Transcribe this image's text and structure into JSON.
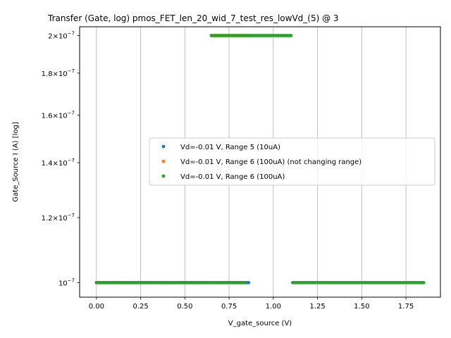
{
  "chart_data": {
    "type": "scatter",
    "title": "Transfer (Gate, log) pmos_FET_len_20_wid_7_test_res_lowVd_(5) @ 3",
    "xlabel": "V_gate_source (V)",
    "ylabel": "Gate_Source I (A) [log]",
    "xlim": [
      -0.095,
      1.945
    ],
    "ylim": [
      9.6e-08,
      2.05e-07
    ],
    "yscale": "log",
    "grid": "x-major",
    "legend_position": "center-right",
    "x_ticks": [
      {
        "value": 0.0,
        "label": "0.00"
      },
      {
        "value": 0.25,
        "label": "0.25"
      },
      {
        "value": 0.5,
        "label": "0.50"
      },
      {
        "value": 0.75,
        "label": "0.75"
      },
      {
        "value": 1.0,
        "label": "1.00"
      },
      {
        "value": 1.25,
        "label": "1.25"
      },
      {
        "value": 1.5,
        "label": "1.50"
      },
      {
        "value": 1.75,
        "label": "1.75"
      }
    ],
    "y_ticks": [
      {
        "value": 1e-07,
        "mantissa": "",
        "exponent": "−7"
      },
      {
        "value": 1.2e-07,
        "mantissa": "1.2",
        "exponent": "−7"
      },
      {
        "value": 1.4e-07,
        "mantissa": "1.4",
        "exponent": "−7"
      },
      {
        "value": 1.6e-07,
        "mantissa": "1.6",
        "exponent": "−7"
      },
      {
        "value": 1.8e-07,
        "mantissa": "1.8",
        "exponent": "−7"
      },
      {
        "value": 2e-07,
        "mantissa": "2",
        "exponent": "−7"
      }
    ],
    "series": [
      {
        "name": "Vd=-0.01 V, Range 5 (10uA)",
        "color": "#1f77b4",
        "segments": [
          {
            "x_start": 0.0,
            "x_end": 0.86,
            "step": 0.01,
            "y": 1e-07
          }
        ]
      },
      {
        "name": "Vd=-0.01 V, Range 6 (100uA) (not changing range)",
        "color": "#ff7f0e",
        "segments": [
          {
            "x_start": 0.65,
            "x_end": 0.86,
            "step": 0.01,
            "y": 2e-07
          }
        ]
      },
      {
        "name": "Vd=-0.01 V, Range 6 (100uA)",
        "color": "#2ca02c",
        "segments": [
          {
            "x_start": 0.0,
            "x_end": 0.78,
            "step": 0.01,
            "y": 1e-07
          },
          {
            "x_start": 0.8,
            "x_end": 0.84,
            "step": 0.01,
            "y": 1e-07
          },
          {
            "x_start": 0.65,
            "x_end": 1.1,
            "step": 0.01,
            "y": 2e-07
          },
          {
            "x_start": 1.11,
            "x_end": 1.85,
            "step": 0.01,
            "y": 1e-07
          }
        ]
      }
    ]
  }
}
